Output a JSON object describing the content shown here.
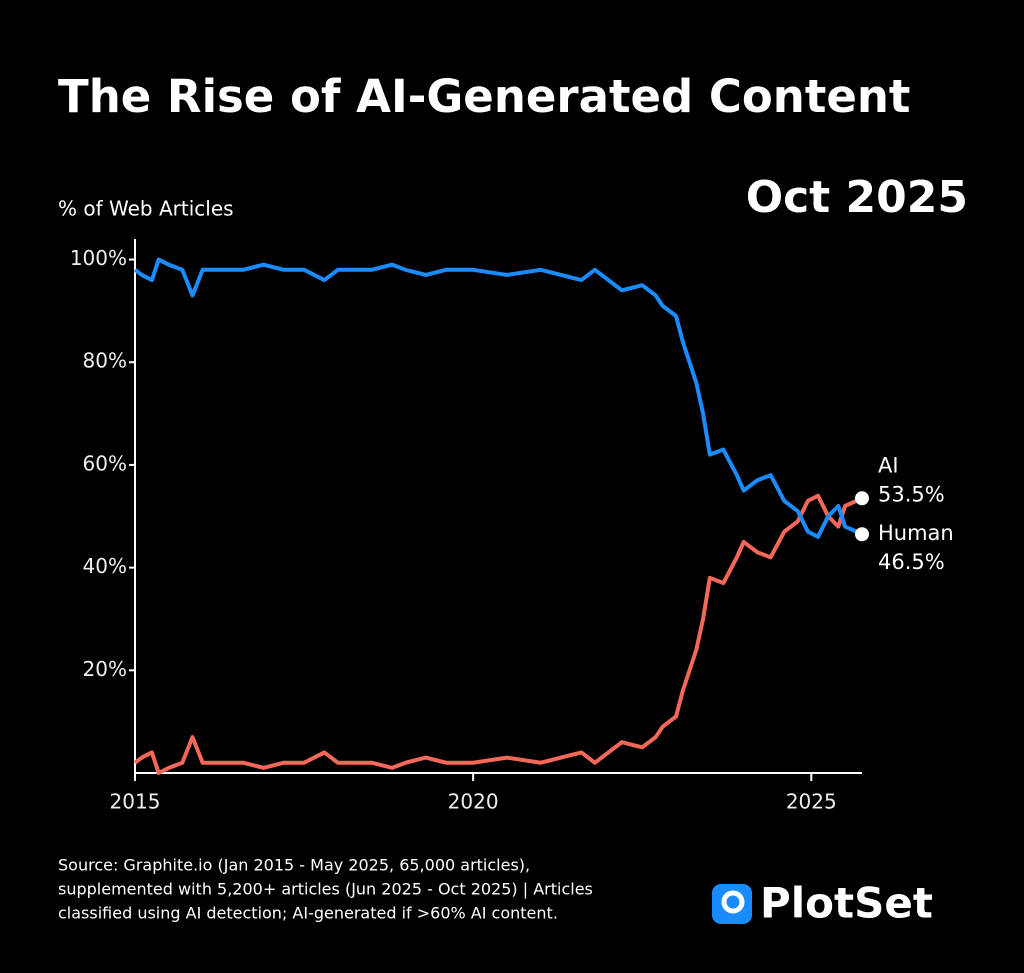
{
  "chart_data": {
    "type": "line",
    "title": "The Rise of AI-Generated Content",
    "subtitle": "Oct 2025",
    "y_label": "% of Web Articles",
    "x": [
      2015.0,
      2015.1,
      2015.25,
      2015.35,
      2015.5,
      2015.7,
      2015.85,
      2016.0,
      2016.3,
      2016.6,
      2016.9,
      2017.2,
      2017.5,
      2017.8,
      2018.0,
      2018.5,
      2018.8,
      2019.0,
      2019.3,
      2019.6,
      2020.0,
      2020.5,
      2021.0,
      2021.3,
      2021.6,
      2021.8,
      2022.0,
      2022.2,
      2022.5,
      2022.7,
      2022.8,
      2023.0,
      2023.1,
      2023.3,
      2023.4,
      2023.5,
      2023.7,
      2023.9,
      2024.0,
      2024.2,
      2024.4,
      2024.6,
      2024.8,
      2024.95,
      2025.1,
      2025.25,
      2025.4,
      2025.5,
      2025.75
    ],
    "series": [
      {
        "name": "AI",
        "color": "#f4685a",
        "end_label": "53.5%",
        "values": [
          2,
          3,
          4,
          0,
          1,
          2,
          7,
          2,
          2,
          2,
          1,
          2,
          2,
          4,
          2,
          2,
          1,
          2,
          3,
          2,
          2,
          3,
          2,
          3,
          4,
          2,
          4,
          6,
          5,
          7,
          9,
          11,
          16,
          24,
          30,
          38,
          37,
          42,
          45,
          43,
          42,
          47,
          49,
          53,
          54,
          50,
          48,
          52,
          53.5
        ]
      },
      {
        "name": "Human",
        "color": "#1a8cff",
        "end_label": "46.5%",
        "values": [
          98,
          97,
          96,
          100,
          99,
          98,
          93,
          98,
          98,
          98,
          99,
          98,
          98,
          96,
          98,
          98,
          99,
          98,
          97,
          98,
          98,
          97,
          98,
          97,
          96,
          98,
          96,
          94,
          95,
          93,
          91,
          89,
          84,
          76,
          70,
          62,
          63,
          58,
          55,
          57,
          58,
          53,
          51,
          47,
          46,
          50,
          52,
          48,
          46.5
        ]
      }
    ],
    "xlim": [
      2015,
      2025.75
    ],
    "xticks": [
      2015,
      2020,
      2025
    ],
    "ylim": [
      0,
      104
    ],
    "yticks": [
      {
        "value": 20,
        "label": "20%"
      },
      {
        "value": 40,
        "label": "40%"
      },
      {
        "value": 60,
        "label": "60%"
      },
      {
        "value": 80,
        "label": "80%"
      },
      {
        "value": 100,
        "label": "100%"
      }
    ],
    "grid": false,
    "source": [
      "Source: Graphite.io (Jan 2015 - May 2025, 65,000 articles),",
      "supplemented with 5,200+ articles (Jun 2025 - Oct 2025) | Articles",
      "classified using AI detection; AI-generated if >60% AI content."
    ],
    "brand": "PlotSet"
  }
}
